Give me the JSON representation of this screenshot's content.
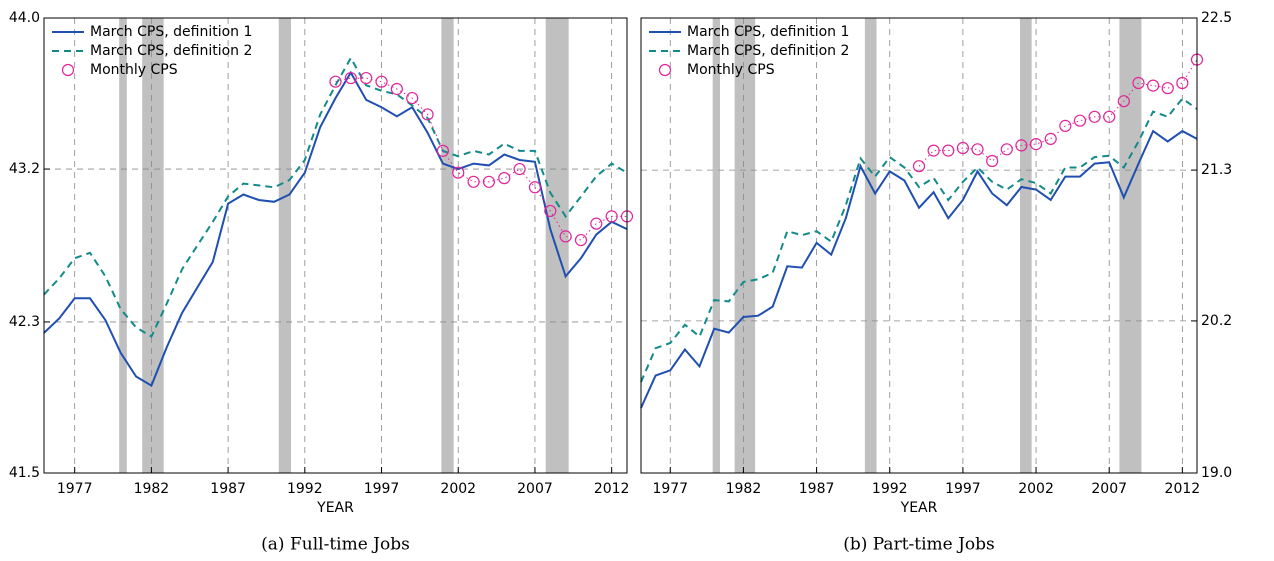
{
  "chart_data": [
    {
      "type": "line",
      "caption": "(a) Full-time Jobs",
      "xlabel": "YEAR",
      "x": [
        1975,
        1976,
        1977,
        1978,
        1979,
        1980,
        1981,
        1982,
        1983,
        1984,
        1985,
        1986,
        1987,
        1988,
        1989,
        1990,
        1991,
        1992,
        1993,
        1994,
        1995,
        1996,
        1997,
        1998,
        1999,
        2000,
        2001,
        2002,
        2003,
        2004,
        2005,
        2006,
        2007,
        2008,
        2009,
        2010,
        2011,
        2012,
        2013
      ],
      "xlim": [
        1975,
        2013
      ],
      "xticks": [
        1977,
        1982,
        1987,
        1992,
        1997,
        2002,
        2007,
        2012
      ],
      "ylim": [
        41.5,
        44
      ],
      "yticks": [
        {
          "value": 41.5,
          "label": "41.5"
        },
        {
          "value": 42.33,
          "label": "42.3"
        },
        {
          "value": 43.17,
          "label": "43.2"
        },
        {
          "value": 44,
          "label": "44.0"
        }
      ],
      "yaxis_side": "left",
      "grid": true,
      "legend": "upper left",
      "recessions": [
        [
          1979.9,
          1980.4
        ],
        [
          1981.4,
          1982.8
        ],
        [
          1990.3,
          1991.1
        ],
        [
          2000.9,
          2001.7
        ],
        [
          2007.7,
          2009.2
        ]
      ],
      "recession_color": "#c0c0c0",
      "series": [
        {
          "name": "March CPS, definition 1",
          "color": "#1f4fb0",
          "linestyle": "solid",
          "marker": "none",
          "values": [
            42.27,
            42.35,
            42.46,
            42.46,
            42.34,
            42.16,
            42.03,
            41.98,
            42.19,
            42.38,
            42.52,
            42.66,
            42.98,
            43.03,
            43.0,
            42.99,
            43.03,
            43.15,
            43.4,
            43.56,
            43.7,
            43.55,
            43.51,
            43.46,
            43.51,
            43.37,
            43.2,
            43.17,
            43.2,
            43.19,
            43.25,
            43.22,
            43.21,
            42.84,
            42.58,
            42.68,
            42.81,
            42.88,
            42.84
          ]
        },
        {
          "name": "March CPS, definition 2",
          "color": "#138a8a",
          "linestyle": "dashed",
          "marker": "none",
          "values": [
            42.48,
            42.57,
            42.68,
            42.71,
            42.58,
            42.4,
            42.3,
            42.25,
            42.43,
            42.62,
            42.75,
            42.88,
            43.02,
            43.09,
            43.08,
            43.07,
            43.11,
            43.22,
            43.47,
            43.63,
            43.78,
            43.63,
            43.6,
            43.58,
            43.52,
            43.45,
            43.27,
            43.24,
            43.27,
            43.25,
            43.31,
            43.27,
            43.27,
            43.04,
            42.91,
            43.02,
            43.13,
            43.2,
            43.15
          ]
        },
        {
          "name": "Monthly CPS",
          "color": "#e0259a",
          "linestyle": "dotted",
          "marker": "circle",
          "values": [
            null,
            null,
            null,
            null,
            null,
            null,
            null,
            null,
            null,
            null,
            null,
            null,
            null,
            null,
            null,
            null,
            null,
            null,
            null,
            43.65,
            43.67,
            43.67,
            43.65,
            43.61,
            43.56,
            43.47,
            43.27,
            43.15,
            43.1,
            43.1,
            43.12,
            43.17,
            43.07,
            42.94,
            42.8,
            42.78,
            42.87,
            42.91,
            42.91
          ]
        }
      ]
    },
    {
      "type": "line",
      "caption": "(b) Part-time Jobs",
      "xlabel": "YEAR",
      "x": [
        1975,
        1976,
        1977,
        1978,
        1979,
        1980,
        1981,
        1982,
        1983,
        1984,
        1985,
        1986,
        1987,
        1988,
        1989,
        1990,
        1991,
        1992,
        1993,
        1994,
        1995,
        1996,
        1997,
        1998,
        1999,
        2000,
        2001,
        2002,
        2003,
        2004,
        2005,
        2006,
        2007,
        2008,
        2009,
        2010,
        2011,
        2012,
        2013
      ],
      "xlim": [
        1975,
        2013
      ],
      "xticks": [
        1977,
        1982,
        1987,
        1992,
        1997,
        2002,
        2007,
        2012
      ],
      "ylim": [
        19,
        22.5
      ],
      "yticks": [
        {
          "value": 19,
          "label": "19.0"
        },
        {
          "value": 20.17,
          "label": "20.2"
        },
        {
          "value": 21.33,
          "label": "21.3"
        },
        22.5
      ],
      "yaxis_side": "right",
      "grid": true,
      "legend": "upper left",
      "recessions": [
        [
          1979.9,
          1980.4
        ],
        [
          1981.4,
          1982.8
        ],
        [
          1990.3,
          1991.1
        ],
        [
          2000.9,
          2001.7
        ],
        [
          2007.7,
          2009.2
        ]
      ],
      "recession_color": "#c0c0c0",
      "series": [
        {
          "name": "March CPS, definition 1",
          "color": "#1f4fb0",
          "linestyle": "solid",
          "marker": "none",
          "values": [
            19.5,
            19.75,
            19.79,
            19.95,
            19.82,
            20.11,
            20.08,
            20.2,
            20.21,
            20.28,
            20.59,
            20.58,
            20.77,
            20.68,
            20.96,
            21.36,
            21.15,
            21.32,
            21.25,
            21.04,
            21.16,
            20.96,
            21.1,
            21.32,
            21.15,
            21.06,
            21.2,
            21.18,
            21.1,
            21.28,
            21.28,
            21.38,
            21.39,
            21.12,
            21.38,
            21.63,
            21.55,
            21.63,
            21.57
          ]
        },
        {
          "name": "March CPS, definition 2",
          "color": "#138a8a",
          "linestyle": "dashed",
          "marker": "none",
          "values": [
            19.7,
            19.96,
            20.0,
            20.14,
            20.05,
            20.33,
            20.32,
            20.47,
            20.49,
            20.54,
            20.86,
            20.83,
            20.86,
            20.78,
            21.06,
            21.42,
            21.28,
            21.43,
            21.35,
            21.2,
            21.27,
            21.1,
            21.24,
            21.35,
            21.24,
            21.18,
            21.26,
            21.23,
            21.15,
            21.35,
            21.35,
            21.43,
            21.44,
            21.35,
            21.55,
            21.78,
            21.74,
            21.88,
            21.8
          ]
        },
        {
          "name": "Monthly CPS",
          "color": "#e0259a",
          "linestyle": "dotted",
          "marker": "circle",
          "values": [
            null,
            null,
            null,
            null,
            null,
            null,
            null,
            null,
            null,
            null,
            null,
            null,
            null,
            null,
            null,
            null,
            null,
            null,
            null,
            21.36,
            21.48,
            21.48,
            21.5,
            21.49,
            21.4,
            21.49,
            21.52,
            21.53,
            21.57,
            21.67,
            21.71,
            21.74,
            21.74,
            21.86,
            22.0,
            21.98,
            21.96,
            22.0,
            22.18
          ]
        }
      ]
    }
  ]
}
